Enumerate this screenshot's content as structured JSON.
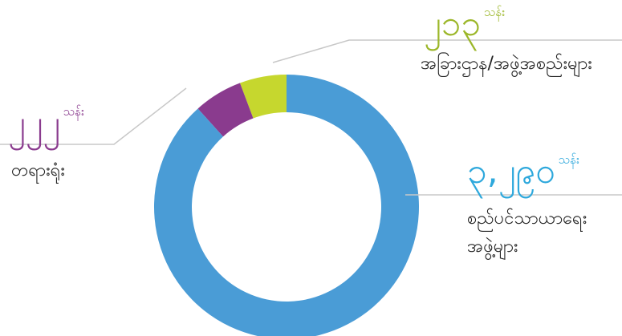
{
  "chart_data": {
    "type": "donut",
    "categories": [
      "စည်ပင်သာယာရေး\nအဖွဲ့များ",
      "တရားရုံး",
      "အခြားဌာန/အဖွဲ့အစည်းများ"
    ],
    "values": [
      3290,
      222,
      213
    ],
    "value_labels": [
      "၃,၂၉၀",
      "၂၂၂",
      "၂၁၃"
    ],
    "unit": "သန်း",
    "colors": [
      "#4a9cd6",
      "#8a3b8e",
      "#c6d72e"
    ],
    "label_colors": [
      "#2ea8dc",
      "#8a3b8e",
      "#9cb72a"
    ]
  }
}
